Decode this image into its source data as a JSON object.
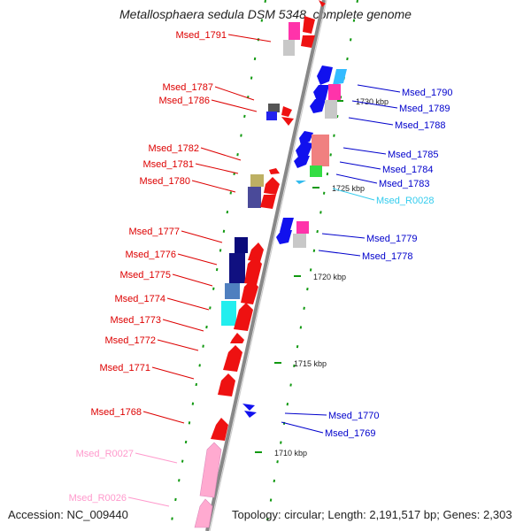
{
  "header": {
    "title": "Metallosphaera sedula DSM 5348, complete genome"
  },
  "footer": {
    "accession": "Accession: NC_009440",
    "summary": "Topology: circular; Length: 2,191,517 bp; Genes: 2,303"
  },
  "scale_labels": [
    "1730 kbp",
    "1725 kbp",
    "1720 kbp",
    "1715 kbp",
    "1710 kbp"
  ],
  "gene_labels": {
    "left": [
      {
        "text": "Msed_1791",
        "color": "#dd0000"
      },
      {
        "text": "Msed_1787",
        "color": "#dd0000"
      },
      {
        "text": "Msed_1786",
        "color": "#dd0000"
      },
      {
        "text": "Msed_1782",
        "color": "#dd0000"
      },
      {
        "text": "Msed_1781",
        "color": "#dd0000"
      },
      {
        "text": "Msed_1780",
        "color": "#dd0000"
      },
      {
        "text": "Msed_1777",
        "color": "#dd0000"
      },
      {
        "text": "Msed_1776",
        "color": "#dd0000"
      },
      {
        "text": "Msed_1775",
        "color": "#dd0000"
      },
      {
        "text": "Msed_1774",
        "color": "#dd0000"
      },
      {
        "text": "Msed_1773",
        "color": "#dd0000"
      },
      {
        "text": "Msed_1772",
        "color": "#dd0000"
      },
      {
        "text": "Msed_1771",
        "color": "#dd0000"
      },
      {
        "text": "Msed_1768",
        "color": "#dd0000"
      },
      {
        "text": "Msed_R0027",
        "color": "#ff99cc"
      },
      {
        "text": "Msed_R0026",
        "color": "#ff99cc"
      }
    ],
    "right": [
      {
        "text": "Msed_1790",
        "color": "#0000cc"
      },
      {
        "text": "Msed_1789",
        "color": "#0000cc"
      },
      {
        "text": "Msed_1788",
        "color": "#0000cc"
      },
      {
        "text": "Msed_1785",
        "color": "#0000cc"
      },
      {
        "text": "Msed_1784",
        "color": "#0000cc"
      },
      {
        "text": "Msed_1783",
        "color": "#0000cc"
      },
      {
        "text": "Msed_R0028",
        "color": "#33ccee"
      },
      {
        "text": "Msed_1779",
        "color": "#0000cc"
      },
      {
        "text": "Msed_1778",
        "color": "#0000cc"
      },
      {
        "text": "Msed_1770",
        "color": "#0000cc"
      },
      {
        "text": "Msed_1769",
        "color": "#0000cc"
      }
    ]
  }
}
